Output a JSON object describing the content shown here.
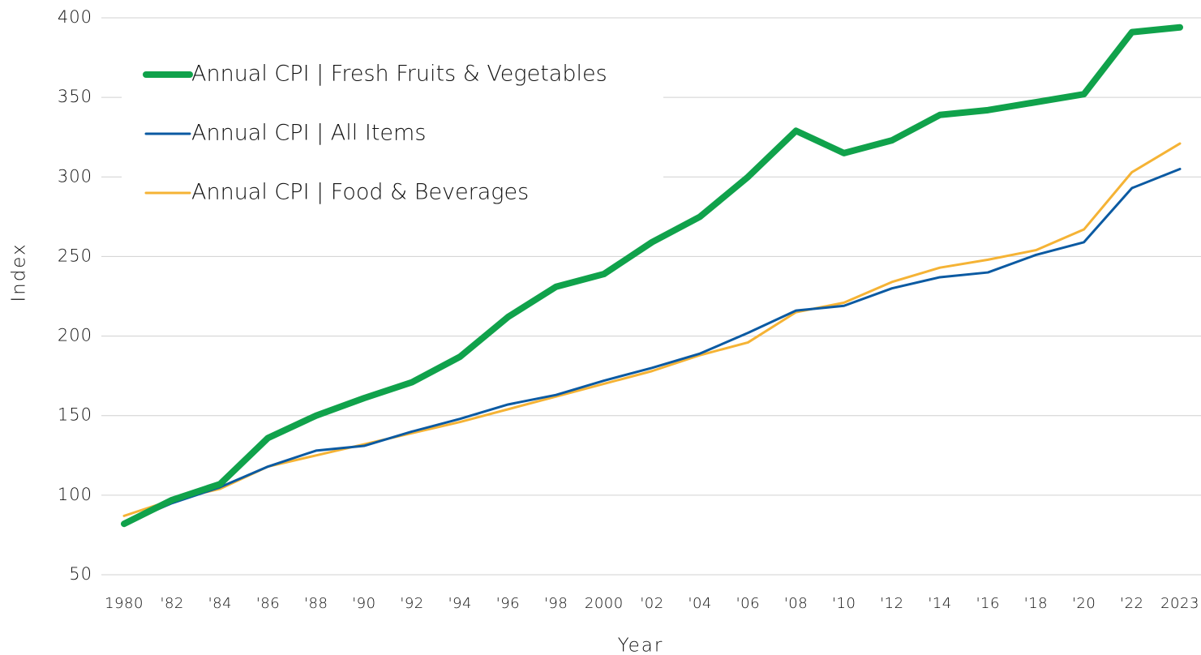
{
  "chart_data": {
    "type": "line",
    "x_label": "Year",
    "y_label": "Index",
    "categories": [
      "1980",
      "'82",
      "'84",
      "'86",
      "'88",
      "'90",
      "'92",
      "'94",
      "'96",
      "'98",
      "2000",
      "'02",
      "'04",
      "'06",
      "'08",
      "'10",
      "'12",
      "'14",
      "'16",
      "'18",
      "'20",
      "'22",
      "2023"
    ],
    "series": [
      {
        "name": "Annual CPI | Fresh Fruits & Vegetables",
        "color": "#10a24b",
        "line_width": 8,
        "values": [
          82,
          97,
          107,
          136,
          150,
          161,
          171,
          187,
          212,
          231,
          239,
          259,
          275,
          300,
          329,
          315,
          323,
          339,
          342,
          347,
          352,
          391,
          394
        ]
      },
      {
        "name": "Annual CPI | All Items",
        "color": "#0b5aa2",
        "line_width": 3,
        "values": [
          82,
          95,
          105,
          118,
          128,
          131,
          140,
          148,
          157,
          163,
          172,
          180,
          189,
          202,
          216,
          219,
          230,
          237,
          240,
          251,
          259,
          293,
          305
        ]
      },
      {
        "name": "Annual CPI | Food & Beverages",
        "color": "#f5b335",
        "line_width": 3,
        "values": [
          87,
          97,
          104,
          118,
          125,
          132,
          139,
          146,
          154,
          162,
          170,
          178,
          188,
          196,
          215,
          221,
          234,
          243,
          248,
          254,
          267,
          303,
          321
        ]
      }
    ],
    "ylim": [
      50,
      400
    ],
    "yticks": [
      50,
      100,
      150,
      200,
      250,
      300,
      350,
      400
    ],
    "grid": true,
    "legend": "upper left"
  }
}
